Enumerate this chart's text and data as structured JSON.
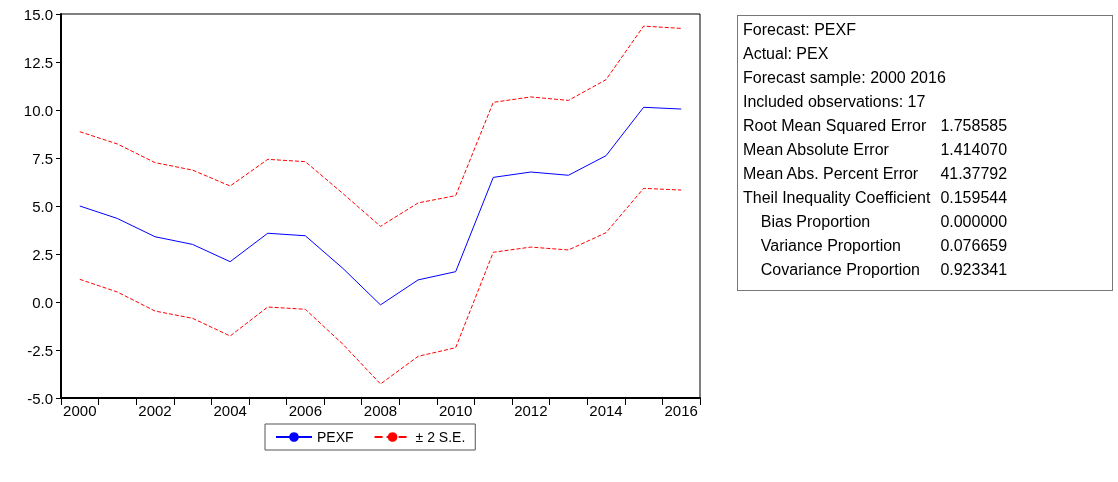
{
  "chart_data": {
    "type": "line",
    "categories": [
      "2000",
      null,
      "2002",
      null,
      "2004",
      null,
      "2006",
      null,
      "2008",
      null,
      "2010",
      null,
      "2012",
      null,
      "2014",
      null,
      "2016"
    ],
    "series": [
      {
        "name": "PEXF",
        "color": "#0000ff",
        "line_style": "solid",
        "values": [
          5.0,
          4.35,
          3.4,
          3.0,
          2.1,
          3.58,
          3.45,
          1.75,
          -0.15,
          1.15,
          1.58,
          6.49,
          6.77,
          6.6,
          7.62,
          10.14,
          10.05
        ]
      },
      {
        "name": "± 2 S.E.",
        "color": "#ff0000",
        "line_style": "dashed",
        "values": [
          8.87,
          8.23,
          7.26,
          6.87,
          6.04,
          7.43,
          7.31,
          5.65,
          3.94,
          5.16,
          5.54,
          10.4,
          10.68,
          10.5,
          11.58,
          14.37,
          14.25
        ]
      },
      {
        "color": "#ff0000",
        "line_style": "dashed",
        "values": [
          1.18,
          0.52,
          -0.47,
          -0.85,
          -1.77,
          -0.26,
          -0.38,
          -2.2,
          -4.27,
          -2.83,
          -2.38,
          2.59,
          2.86,
          2.71,
          3.61,
          5.92,
          5.83
        ]
      }
    ],
    "ylim": [
      -5,
      15
    ],
    "yticks": [
      {
        "value": -5,
        "label": "-5.0"
      },
      {
        "value": -2.5,
        "label": "-2.5"
      },
      {
        "value": 0,
        "label": "0.0"
      },
      {
        "value": 2.5,
        "label": "2.5"
      },
      {
        "value": 5,
        "label": "5.0"
      },
      {
        "value": 7.5,
        "label": "7.5"
      },
      {
        "value": 10,
        "label": "10.0"
      },
      {
        "value": 12.5,
        "label": "12.5"
      },
      {
        "value": 15,
        "label": "15.0"
      }
    ],
    "grid": false,
    "legend": "bottom",
    "marker": "none",
    "annotations": [
      "Forecast: PEXF",
      "Actual: PEX",
      "Forecast sample: 2000 2016",
      "Included observations: 17",
      "Root Mean Squared Error\t1.758585",
      "Mean Absolute Error\t1.414070",
      "Mean Abs. Percent Error\t41.37792",
      "Theil Inequality Coefficient\t0.159544",
      "    Bias Proportion\t0.000000",
      "    Variance Proportion\t0.076659",
      "    Covariance Proportion\t0.923341"
    ]
  }
}
